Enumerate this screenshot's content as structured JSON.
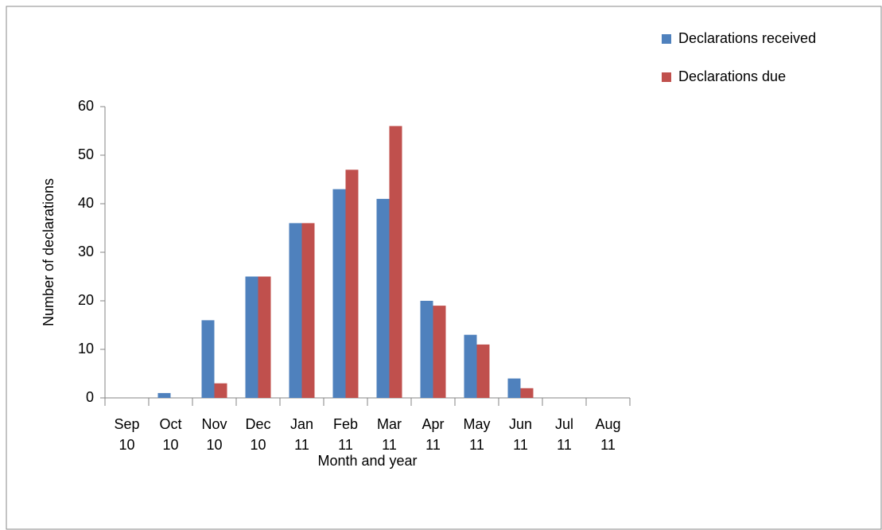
{
  "chart_data": {
    "type": "bar",
    "x_label": "Month and year",
    "y_label": "Number of declarations",
    "categories": [
      "Sep 10",
      "Oct 10",
      "Nov 10",
      "Dec 10",
      "Jan 11",
      "Feb 11",
      "Mar 11",
      "Apr 11",
      "May 11",
      "Jun 11",
      "Jul 11",
      "Aug 11"
    ],
    "series": [
      {
        "name": "Declarations received",
        "color": "#4f81bd",
        "values": [
          0,
          1,
          16,
          25,
          36,
          43,
          41,
          20,
          13,
          4,
          0,
          0
        ]
      },
      {
        "name": "Declarations due",
        "color": "#c0504d",
        "values": [
          0,
          0,
          3,
          25,
          36,
          47,
          56,
          19,
          11,
          2,
          0,
          0
        ]
      }
    ],
    "ylim": [
      0,
      60
    ],
    "yticks": [
      0,
      10,
      20,
      30,
      40,
      50,
      60
    ],
    "grid": false,
    "legend": "top-right"
  }
}
